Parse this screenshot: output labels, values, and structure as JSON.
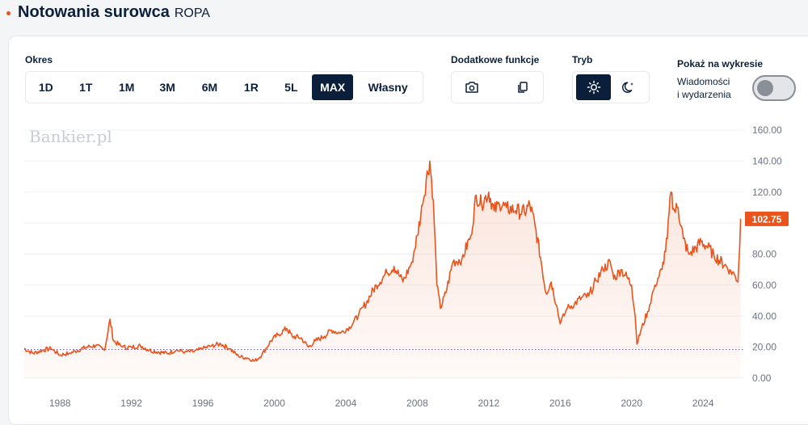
{
  "header": {
    "title": "Notowania surowca",
    "subtitle": "ROPA"
  },
  "controls": {
    "period_label": "Okres",
    "periods": [
      "1D",
      "1T",
      "1M",
      "3M",
      "6M",
      "1R",
      "5L",
      "MAX",
      "Własny"
    ],
    "active_period": "MAX",
    "extra_label": "Dodatkowe funkcje",
    "extra_icons": [
      "camera-icon",
      "copy-icon"
    ],
    "mode_label": "Tryb",
    "mode_icons": [
      "sun-icon",
      "moon-icon"
    ],
    "active_mode": "sun-icon",
    "show_label": "Pokaż na wykresie",
    "news_toggle_line1": "Wiadomości",
    "news_toggle_line2": "i wydarzenia",
    "news_toggle_on": false
  },
  "colors": {
    "accent": "#e8541c",
    "navy": "#0b1f3a",
    "area_fill": "#fdeee8",
    "baseline": "#6b5b9a",
    "grid": "#eef0f3"
  },
  "chart_data": {
    "type": "area",
    "watermark": "Bankier.pl",
    "x": [
      1986.0,
      1986.5,
      1987.0,
      1987.5,
      1988.0,
      1988.5,
      1989.0,
      1989.5,
      1990.0,
      1990.5,
      1990.8,
      1991.0,
      1991.5,
      1992.0,
      1992.5,
      1993.0,
      1993.5,
      1994.0,
      1994.5,
      1995.0,
      1995.5,
      1996.0,
      1996.5,
      1997.0,
      1997.5,
      1998.0,
      1998.5,
      1998.9,
      1999.3,
      1999.8,
      2000.2,
      2000.7,
      2001.0,
      2001.5,
      2001.9,
      2002.3,
      2002.8,
      2003.2,
      2003.7,
      2004.2,
      2004.7,
      2005.2,
      2005.7,
      2006.3,
      2006.7,
      2007.2,
      2007.7,
      2008.0,
      2008.3,
      2008.5,
      2008.7,
      2008.9,
      2009.1,
      2009.3,
      2009.6,
      2010.0,
      2010.5,
      2011.0,
      2011.3,
      2011.6,
      2012.0,
      2012.3,
      2012.6,
      2013.0,
      2013.5,
      2014.0,
      2014.3,
      2014.6,
      2014.9,
      2015.2,
      2015.5,
      2015.8,
      2016.0,
      2016.4,
      2016.8,
      2017.2,
      2017.6,
      2018.0,
      2018.4,
      2018.8,
      2019.0,
      2019.4,
      2019.8,
      2020.0,
      2020.2,
      2020.3,
      2020.5,
      2020.9,
      2021.3,
      2021.7,
      2022.0,
      2022.2,
      2022.4,
      2022.6,
      2022.9,
      2023.2,
      2023.6,
      2023.9,
      2024.2,
      2024.6,
      2024.9,
      2025.2,
      2025.5,
      2025.8,
      2025.95,
      2026.05,
      2026.1
    ],
    "y": [
      19,
      16,
      18,
      19,
      15,
      16,
      18,
      20,
      21,
      18,
      38,
      24,
      20,
      20,
      21,
      18,
      17,
      16,
      18,
      17,
      17,
      19,
      21,
      22,
      19,
      14,
      13,
      11,
      15,
      24,
      28,
      32,
      27,
      26,
      20,
      24,
      27,
      31,
      29,
      33,
      40,
      50,
      60,
      68,
      72,
      62,
      75,
      92,
      112,
      128,
      140,
      115,
      60,
      45,
      55,
      75,
      77,
      92,
      118,
      112,
      120,
      108,
      112,
      110,
      108,
      107,
      112,
      98,
      78,
      55,
      62,
      47,
      35,
      45,
      48,
      52,
      53,
      63,
      70,
      75,
      64,
      70,
      64,
      60,
      40,
      22,
      30,
      43,
      60,
      70,
      90,
      120,
      108,
      110,
      90,
      80,
      84,
      88,
      85,
      80,
      76,
      73,
      70,
      66,
      62,
      85,
      102.75
    ],
    "last_value": 102.75,
    "last_value_label": "102.75",
    "reference_level": 18.5,
    "xlim": [
      1986.0,
      2026.3
    ],
    "ylim": [
      0,
      160
    ],
    "yticks": [
      0,
      20,
      40,
      60,
      80,
      100,
      120,
      140,
      160
    ],
    "ytick_labels": [
      "0.00",
      "20.00",
      "40.00",
      "60.00",
      "80.00",
      "",
      "120.00",
      "140.00",
      "160.00"
    ],
    "xticks": [
      1988,
      1992,
      1996,
      2000,
      2004,
      2008,
      2012,
      2016,
      2020,
      2024
    ],
    "xtick_labels": [
      "1988",
      "1992",
      "1996",
      "2000",
      "2004",
      "2008",
      "2012",
      "2016",
      "2020",
      "2024"
    ],
    "grid": true
  }
}
